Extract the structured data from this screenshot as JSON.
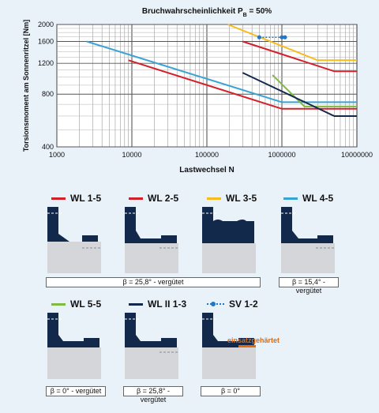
{
  "colors": {
    "red": "#d2202b",
    "blue": "#3aa3d6",
    "yellow": "#f6bc1d",
    "green": "#7fba42",
    "navy": "#13294b",
    "sv": "#2576c6",
    "hardened": "#e06a10"
  },
  "chart_data": {
    "type": "line",
    "title": "Bruchwahrscheinlichkeit P",
    "title_sub": "B",
    "title_suffix": " = 50%",
    "xlabel": "Lastwechsel N",
    "ylabel": "Torsionsmoment am Sonnenritzel  [Nm]",
    "xscale": "log",
    "yscale": "log",
    "xlim": [
      1000,
      10000000
    ],
    "ylim": [
      400,
      2000
    ],
    "xticks": [
      "1000",
      "10000",
      "100000",
      "1000000",
      "10000000"
    ],
    "yticks": [
      "400",
      "800",
      "1200",
      "1600",
      "2000"
    ],
    "grid": true,
    "series": [
      {
        "name": "WL 1-5",
        "color": "red",
        "points": [
          [
            9000,
            1250
          ],
          [
            1000000,
            660
          ],
          [
            10000000,
            660
          ]
        ]
      },
      {
        "name": "WL 2-5",
        "color": "red",
        "points": [
          [
            300000,
            1600
          ],
          [
            5000000,
            1080
          ],
          [
            10000000,
            1080
          ]
        ]
      },
      {
        "name": "WL 3-5",
        "color": "yellow",
        "points": [
          [
            190000,
            2000
          ],
          [
            3000000,
            1250
          ],
          [
            10000000,
            1250
          ]
        ]
      },
      {
        "name": "WL 4-5",
        "color": "blue",
        "points": [
          [
            2500,
            1600
          ],
          [
            1000000,
            720
          ],
          [
            10000000,
            720
          ]
        ]
      },
      {
        "name": "WL 5-5",
        "color": "green",
        "points": [
          [
            750000,
            1030
          ],
          [
            2000000,
            680
          ],
          [
            10000000,
            680
          ]
        ]
      },
      {
        "name": "WL II 1-3",
        "color": "navy",
        "points": [
          [
            300000,
            1060
          ],
          [
            5000000,
            600
          ],
          [
            10000000,
            600
          ]
        ]
      },
      {
        "name": "SV 1-2",
        "color": "sv",
        "points": [
          [
            500000,
            1690
          ],
          [
            1000000,
            1690
          ],
          [
            1100000,
            1690
          ]
        ],
        "dotted": true
      }
    ]
  },
  "legend": [
    {
      "label": "WL 1-5",
      "color": "red"
    },
    {
      "label": "WL 2-5",
      "color": "red"
    },
    {
      "label": "WL 3-5",
      "color": "yellow"
    },
    {
      "label": "WL 4-5",
      "color": "blue"
    },
    {
      "label": "WL 5-5",
      "color": "green"
    },
    {
      "label": "WL II 1-3",
      "color": "navy"
    },
    {
      "label": "SV 1-2",
      "color": "sv"
    }
  ],
  "notes": {
    "row1_wide": "β = 25,8° - vergütet",
    "row1_right": "β = 15,4° - vergütet",
    "row2_a": "β = 0° - vergütet",
    "row2_b": "β = 25,8° - vergütet",
    "row2_c": "β = 0°"
  },
  "hardened_label": "einsatzgehärtet"
}
